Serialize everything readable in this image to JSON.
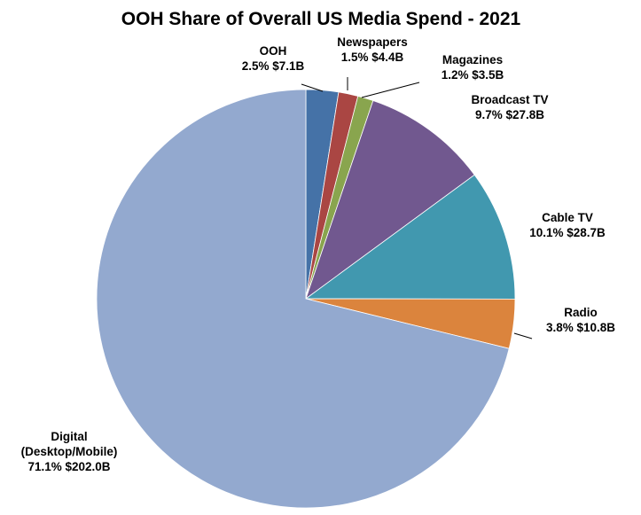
{
  "chart_data": {
    "type": "pie",
    "title": "OOH Share of Overall US Media Spend - 2021",
    "start_angle_deg": 0,
    "direction": "clockwise",
    "slices": [
      {
        "label": "OOH",
        "label_lines": [
          "OOH"
        ],
        "percent": 2.5,
        "percent_text": "2.5%",
        "value_text": "$7.1B",
        "value": 7.1,
        "color": "#4572A7"
      },
      {
        "label": "Newspapers",
        "label_lines": [
          "Newspapers"
        ],
        "percent": 1.5,
        "percent_text": "1.5%",
        "value_text": "$4.4B",
        "value": 4.4,
        "color": "#AA4643"
      },
      {
        "label": "Magazines",
        "label_lines": [
          "Magazines"
        ],
        "percent": 1.2,
        "percent_text": "1.2%",
        "value_text": "$3.5B",
        "value": 3.5,
        "color": "#89A54E"
      },
      {
        "label": "Broadcast TV",
        "label_lines": [
          "Broadcast TV"
        ],
        "percent": 9.7,
        "percent_text": "9.7%",
        "value_text": "$27.8B",
        "value": 27.8,
        "color": "#71588F"
      },
      {
        "label": "Cable TV",
        "label_lines": [
          "Cable TV"
        ],
        "percent": 10.1,
        "percent_text": "10.1%",
        "value_text": "$28.7B",
        "value": 28.7,
        "color": "#4198AF"
      },
      {
        "label": "Radio",
        "label_lines": [
          "Radio"
        ],
        "percent": 3.8,
        "percent_text": "3.8%",
        "value_text": "$10.8B",
        "value": 10.8,
        "color": "#DB843D"
      },
      {
        "label": "Digital (Desktop/Mobile)",
        "label_lines": [
          "Digital",
          "(Desktop/Mobile)"
        ],
        "percent": 71.1,
        "percent_text": "71.1%",
        "value_text": "$202.0B",
        "value": 202.0,
        "color": "#93A9CF"
      }
    ]
  }
}
